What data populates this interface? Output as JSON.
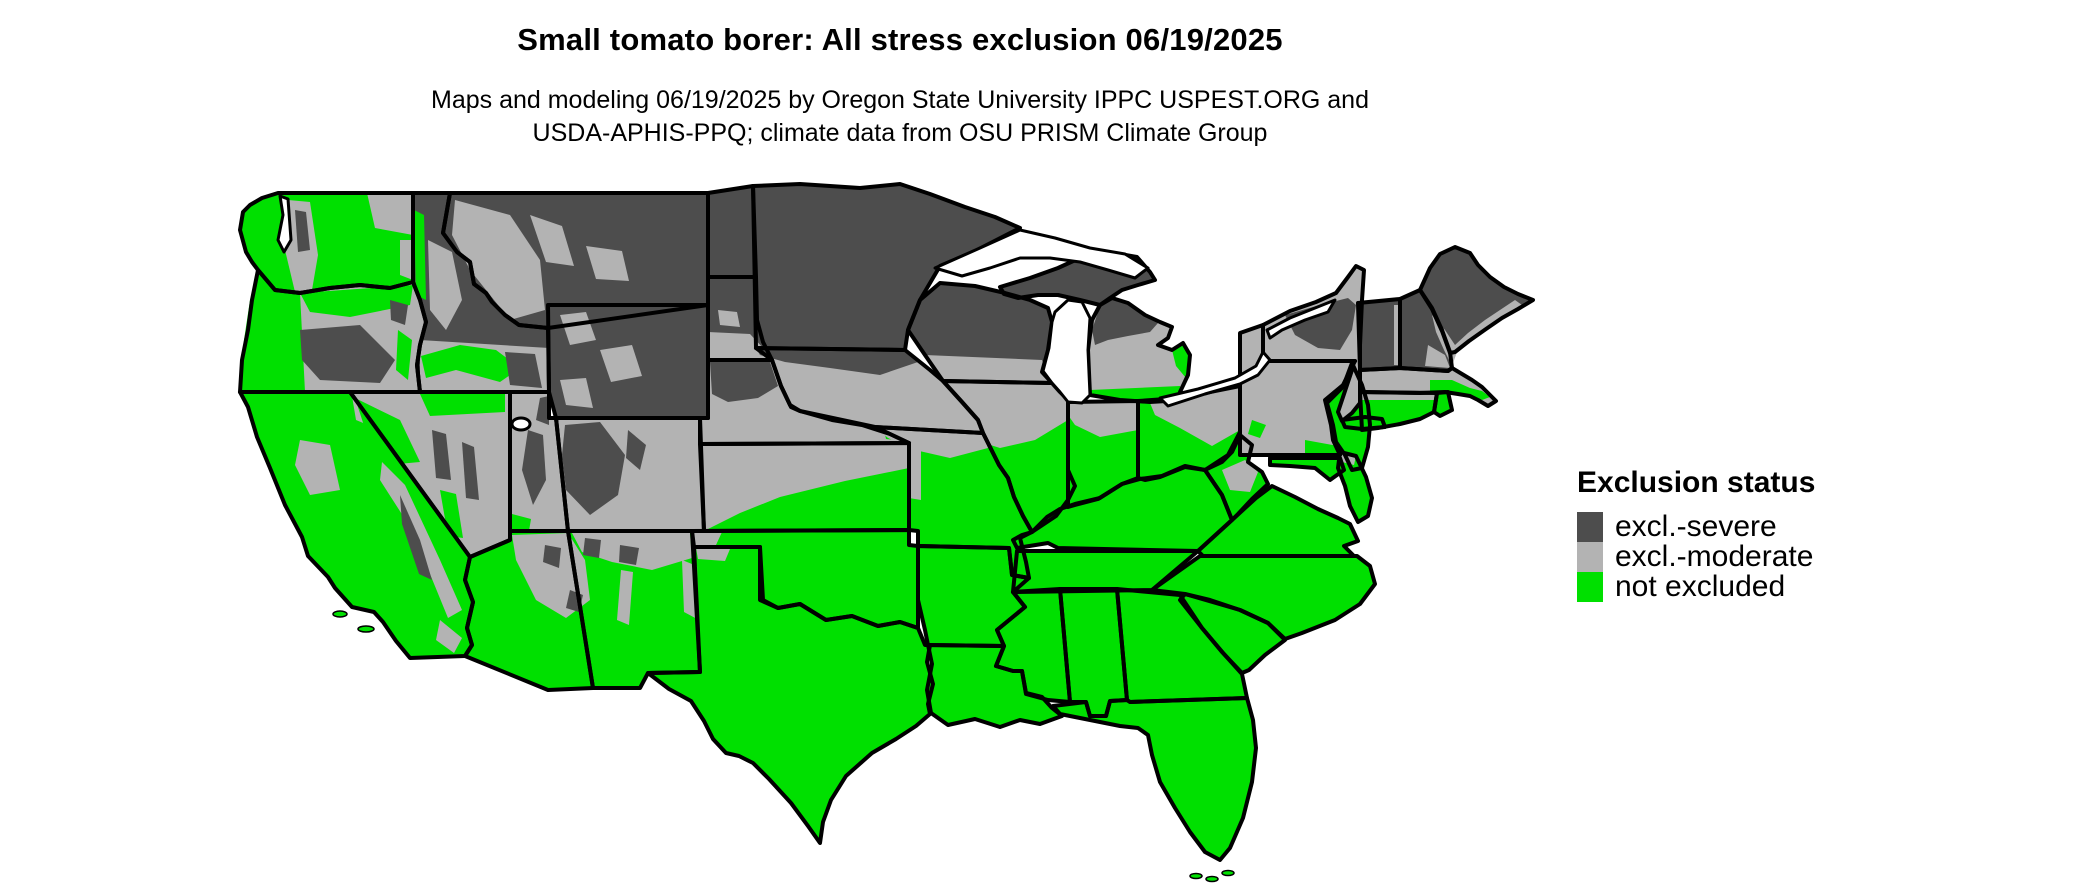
{
  "title": "Small tomato borer: All stress exclusion 06/19/2025",
  "subtitle_line1": "Maps and modeling 06/19/2025 by Oregon State University IPPC USPEST.ORG and",
  "subtitle_line2": "USDA-APHIS-PPQ; climate data from OSU PRISM Climate Group",
  "legend": {
    "title": "Exclusion status",
    "items": [
      {
        "status": "severe",
        "label": "excl.-severe",
        "color": "#4d4d4d"
      },
      {
        "status": "moderate",
        "label": "excl.-moderate",
        "color": "#b3b3b3"
      },
      {
        "status": "not_excluded",
        "label": "not excluded",
        "color": "#00e000"
      }
    ]
  },
  "map": {
    "region": "Contiguous United States",
    "date_shown": "06/19/2025",
    "status_colors": {
      "severe": "#4d4d4d",
      "moderate": "#b3b3b3",
      "not_excluded": "#00e000"
    },
    "water_color": "#ffffff",
    "border_color": "#000000",
    "background_color": "#ffffff",
    "states": [
      {
        "id": "WA",
        "name": "Washington",
        "status": "not_excluded"
      },
      {
        "id": "OR",
        "name": "Oregon",
        "status": "moderate"
      },
      {
        "id": "CA",
        "name": "California",
        "status": "not_excluded"
      },
      {
        "id": "NV",
        "name": "Nevada",
        "status": "moderate"
      },
      {
        "id": "ID",
        "name": "Idaho",
        "status": "severe"
      },
      {
        "id": "MT",
        "name": "Montana",
        "status": "severe"
      },
      {
        "id": "WY",
        "name": "Wyoming",
        "status": "severe"
      },
      {
        "id": "UT",
        "name": "Utah",
        "status": "moderate"
      },
      {
        "id": "CO",
        "name": "Colorado",
        "status": "moderate"
      },
      {
        "id": "AZ",
        "name": "Arizona",
        "status": "not_excluded"
      },
      {
        "id": "NM",
        "name": "New Mexico",
        "status": "not_excluded"
      },
      {
        "id": "ND",
        "name": "North Dakota",
        "status": "severe"
      },
      {
        "id": "SD",
        "name": "South Dakota",
        "status": "severe"
      },
      {
        "id": "NE",
        "name": "Nebraska",
        "status": "moderate"
      },
      {
        "id": "KS",
        "name": "Kansas",
        "status": "moderate"
      },
      {
        "id": "OK",
        "name": "Oklahoma",
        "status": "not_excluded"
      },
      {
        "id": "TX",
        "name": "Texas",
        "status": "not_excluded"
      },
      {
        "id": "MN",
        "name": "Minnesota",
        "status": "severe"
      },
      {
        "id": "IA",
        "name": "Iowa",
        "status": "moderate"
      },
      {
        "id": "MO",
        "name": "Missouri",
        "status": "not_excluded"
      },
      {
        "id": "WI",
        "name": "Wisconsin",
        "status": "severe"
      },
      {
        "id": "IL",
        "name": "Illinois",
        "status": "not_excluded"
      },
      {
        "id": "IN",
        "name": "Indiana",
        "status": "not_excluded"
      },
      {
        "id": "MIUP",
        "name": "Michigan (Upper Peninsula)",
        "status": "severe"
      },
      {
        "id": "MILP",
        "name": "Michigan (Lower Peninsula)",
        "status": "moderate"
      },
      {
        "id": "OH",
        "name": "Ohio",
        "status": "not_excluded"
      },
      {
        "id": "KY",
        "name": "Kentucky",
        "status": "not_excluded"
      },
      {
        "id": "TN",
        "name": "Tennessee",
        "status": "not_excluded"
      },
      {
        "id": "AR",
        "name": "Arkansas",
        "status": "not_excluded"
      },
      {
        "id": "LA",
        "name": "Louisiana",
        "status": "not_excluded"
      },
      {
        "id": "MS",
        "name": "Mississippi",
        "status": "not_excluded"
      },
      {
        "id": "AL",
        "name": "Alabama",
        "status": "not_excluded"
      },
      {
        "id": "GA",
        "name": "Georgia",
        "status": "not_excluded"
      },
      {
        "id": "FL",
        "name": "Florida",
        "status": "not_excluded"
      },
      {
        "id": "SC",
        "name": "South Carolina",
        "status": "not_excluded"
      },
      {
        "id": "NC",
        "name": "North Carolina",
        "status": "not_excluded"
      },
      {
        "id": "VA",
        "name": "Virginia",
        "status": "not_excluded"
      },
      {
        "id": "WV",
        "name": "West Virginia",
        "status": "not_excluded"
      },
      {
        "id": "MD",
        "name": "Maryland",
        "status": "not_excluded"
      },
      {
        "id": "DM",
        "name": "Delmarva (DE / MD / VA eastern shore)",
        "status": "not_excluded"
      },
      {
        "id": "NJ",
        "name": "New Jersey",
        "status": "not_excluded"
      },
      {
        "id": "PA",
        "name": "Pennsylvania",
        "status": "moderate"
      },
      {
        "id": "NY",
        "name": "New York",
        "status": "moderate"
      },
      {
        "id": "LI",
        "name": "Long Island (NY)",
        "status": "not_excluded"
      },
      {
        "id": "CT",
        "name": "Connecticut",
        "status": "not_excluded"
      },
      {
        "id": "RI",
        "name": "Rhode Island",
        "status": "not_excluded"
      },
      {
        "id": "MA",
        "name": "Massachusetts",
        "status": "moderate"
      },
      {
        "id": "VT",
        "name": "Vermont",
        "status": "severe"
      },
      {
        "id": "NH",
        "name": "New Hampshire",
        "status": "severe"
      },
      {
        "id": "ME",
        "name": "Maine",
        "status": "severe"
      }
    ]
  }
}
